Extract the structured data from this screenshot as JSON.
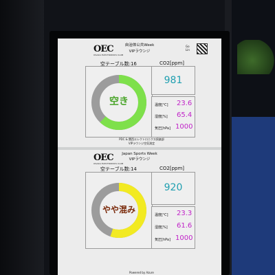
{
  "top": {
    "logo": "OEC",
    "logo_sub": "OSAKA ELECTRONICS CLUB",
    "title": "自治体公共Week",
    "subtitle": "VIPラウンジ",
    "seats_label": "空テーブル数:16",
    "co2_label": "CO2[ppm]",
    "co2_value": "981",
    "temp_label": "温度[℃]",
    "temp_value": "23.6",
    "hum_label": "湿度[%]",
    "hum_value": "65.4",
    "pres_label": "気圧[hPa]",
    "pres_value": "1000",
    "status": "空き",
    "gauge_fill": 0.62,
    "gauge_color": "#7ee04b"
  },
  "mid": {
    "line1": "PDC & 関西エレクトロニクス倶楽部",
    "line2": "VIPラウンジ空気測定"
  },
  "bottom": {
    "logo": "OEC",
    "logo_sub": "OSAKA ELECTRONICS CLUB",
    "title": "Japan Sports Week",
    "subtitle": "VIPラウンジ",
    "seats_label": "空テーブル数:14",
    "co2_label": "CO2[ppm]",
    "co2_value": "920",
    "temp_label": "温度[℃]",
    "temp_value": "23.3",
    "hum_label": "湿度[%]",
    "hum_value": "61.6",
    "pres_label": "気圧[hPa]",
    "pres_value": "1000",
    "status": "やや混み",
    "gauge_fill": 0.55,
    "gauge_color": "#f2ea22"
  },
  "footer": {
    "text": "Powered by Azure"
  }
}
